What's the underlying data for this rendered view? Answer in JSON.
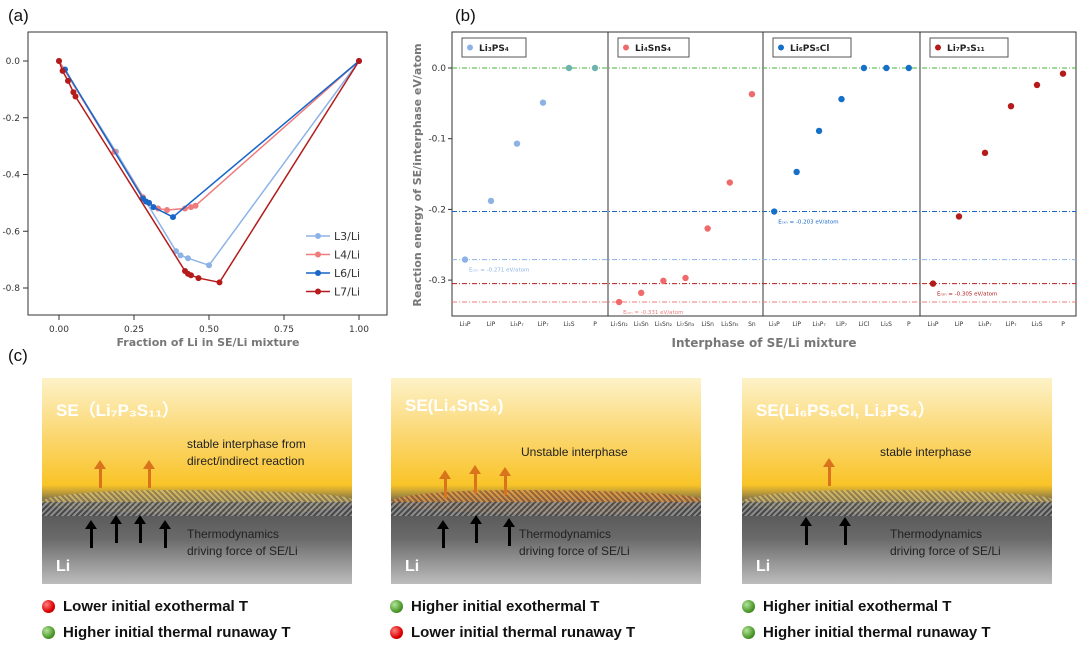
{
  "panel_labels": {
    "a": "(a)",
    "b": "(b)",
    "c": "(c)"
  },
  "colors": {
    "L3": "#8db3e6",
    "L4": "#ef7c7c",
    "L6": "#1766c8",
    "L7": "#b51b1b",
    "green": "#44b53a",
    "orange": "#d9731c"
  },
  "chart_data": [
    {
      "type": "line",
      "title": "",
      "xlabel": "Fraction of Li in SE/Li mixture",
      "ylabel": "",
      "xlim": [
        -0.1,
        1.07
      ],
      "ylim": [
        -0.9,
        0.1
      ],
      "xticks": [
        "0.00",
        "0.25",
        "0.50",
        "0.75",
        "1.00"
      ],
      "yticks": [
        "0.0",
        "-0.2",
        "-0.4",
        "-0.6",
        "-0.8"
      ],
      "legend": "bottom-right",
      "series": [
        {
          "name": "L3/Li",
          "color": "#8db3e6",
          "x": [
            0,
            0.19,
            0.39,
            0.405,
            0.43,
            0.5,
            1
          ],
          "y": [
            0,
            -0.32,
            -0.67,
            -0.685,
            -0.695,
            -0.72,
            0
          ]
        },
        {
          "name": "L4/Li",
          "color": "#ef7c7c",
          "x": [
            0,
            0.185,
            0.28,
            0.3,
            0.33,
            0.36,
            0.42,
            0.44,
            0.455,
            1
          ],
          "y": [
            0,
            -0.32,
            -0.48,
            -0.5,
            -0.52,
            -0.525,
            -0.52,
            -0.515,
            -0.51,
            0
          ]
        },
        {
          "name": "L6/Li",
          "color": "#1766c8",
          "x": [
            0.02,
            0.28,
            0.29,
            0.3,
            0.315,
            0.38,
            1
          ],
          "y": [
            -0.03,
            -0.485,
            -0.495,
            -0.5,
            -0.515,
            -0.55,
            0
          ]
        },
        {
          "name": "L7/Li",
          "color": "#b51b1b",
          "x": [
            0,
            0.012,
            0.03,
            0.048,
            0.055,
            0.42,
            0.43,
            0.44,
            0.465,
            0.535,
            1
          ],
          "y": [
            0,
            -0.035,
            -0.07,
            -0.11,
            -0.125,
            -0.74,
            -0.75,
            -0.755,
            -0.765,
            -0.78,
            0
          ]
        }
      ]
    },
    {
      "type": "scatter",
      "xlabel": "Interphase of SE/Li mixture",
      "ylabel": "Reaction energy of SE/interphase eV/atom",
      "ylim": [
        -0.351,
        0.051
      ],
      "yticks": [
        "0.0",
        "-0.1",
        "-0.2",
        "-0.3"
      ],
      "reference_lines": [
        {
          "y": 0,
          "color": "#44b53a"
        },
        {
          "y": -0.203,
          "color": "#1766c8"
        },
        {
          "y": -0.271,
          "color": "#8db3e6"
        },
        {
          "y": -0.305,
          "color": "#b51b1b"
        },
        {
          "y": -0.331,
          "color": "#ef7c7c"
        }
      ],
      "groups": [
        {
          "name": "Li₃PS₄",
          "color": "#8db3e6",
          "categories": [
            "Li₃P",
            "LiP",
            "Li₃P₇",
            "LiP₇",
            "Li₂S",
            "P"
          ],
          "values": [
            -0.271,
            -0.188,
            -0.107,
            -0.049,
            0,
            0
          ],
          "annotation": "Eᵣₓₙ = -0.271 eV/atom",
          "ann_color": "#8db3e6"
        },
        {
          "name": "Li₄SnS₄",
          "color": "#ef6b6b",
          "categories": [
            "Li₇Sn₂",
            "Li₅Sn",
            "Li₅Sn₂",
            "Li₇Sn₃",
            "LiSn",
            "Li₂Sn₅",
            "Sn"
          ],
          "values": [
            -0.331,
            -0.318,
            -0.301,
            -0.297,
            -0.227,
            -0.162,
            -0.037
          ],
          "annotation": "Eᵣₓₙ = -0.331 eV/atom",
          "ann_color": "#ef7c7c"
        },
        {
          "name": "Li₆PS₅Cl",
          "color": "#1770c8",
          "categories": [
            "Li₃P",
            "LiP",
            "Li₃P₇",
            "LiP₇",
            "LiCl",
            "Li₂S",
            "P"
          ],
          "values": [
            -0.203,
            -0.147,
            -0.089,
            -0.044,
            0,
            0,
            0
          ],
          "annotation": "Eᵣₓₙ = -0.203 eV/atom",
          "ann_color": "#1766c8"
        },
        {
          "name": "Li₇P₃S₁₁",
          "color": "#b51b1b",
          "categories": [
            "Li₃P",
            "LiP",
            "Li₃P₇",
            "LiP₇",
            "Li₂S",
            "P"
          ],
          "values": [
            -0.305,
            -0.21,
            -0.12,
            -0.054,
            -0.024,
            -0.008
          ],
          "annotation": "Eᵣₓₙ = -0.305 eV/atom",
          "ann_color": "#b51b1b"
        }
      ]
    }
  ],
  "scenes": [
    {
      "title": "SE（Li₇P₃S₁₁）",
      "interphase": "stable interphase from direct/indirect reaction",
      "force_1": "Thermodynamics",
      "force_2": "driving force of SE/Li",
      "li": "Li",
      "bullets": [
        {
          "color": "red",
          "text": "Lower initial exothermal T"
        },
        {
          "color": "green",
          "text": "Higher initial thermal runaway T"
        }
      ]
    },
    {
      "title": "SE(Li₄SnS₄)",
      "interphase": "Unstable interphase",
      "force_1": "Thermodynamics",
      "force_2": "driving force of SE/Li",
      "li": "Li",
      "bullets": [
        {
          "color": "green",
          "text": "Higher initial exothermal T"
        },
        {
          "color": "red",
          "text": "Lower initial thermal runaway T"
        }
      ]
    },
    {
      "title": "SE(Li₆PS₅Cl, Li₃PS₄）",
      "interphase": "stable interphase",
      "force_1": "Thermodynamics",
      "force_2": "driving force of SE/Li",
      "li": "Li",
      "bullets": [
        {
          "color": "green",
          "text": "Higher initial exothermal T"
        },
        {
          "color": "green",
          "text": "Higher initial thermal runaway T"
        }
      ]
    }
  ]
}
